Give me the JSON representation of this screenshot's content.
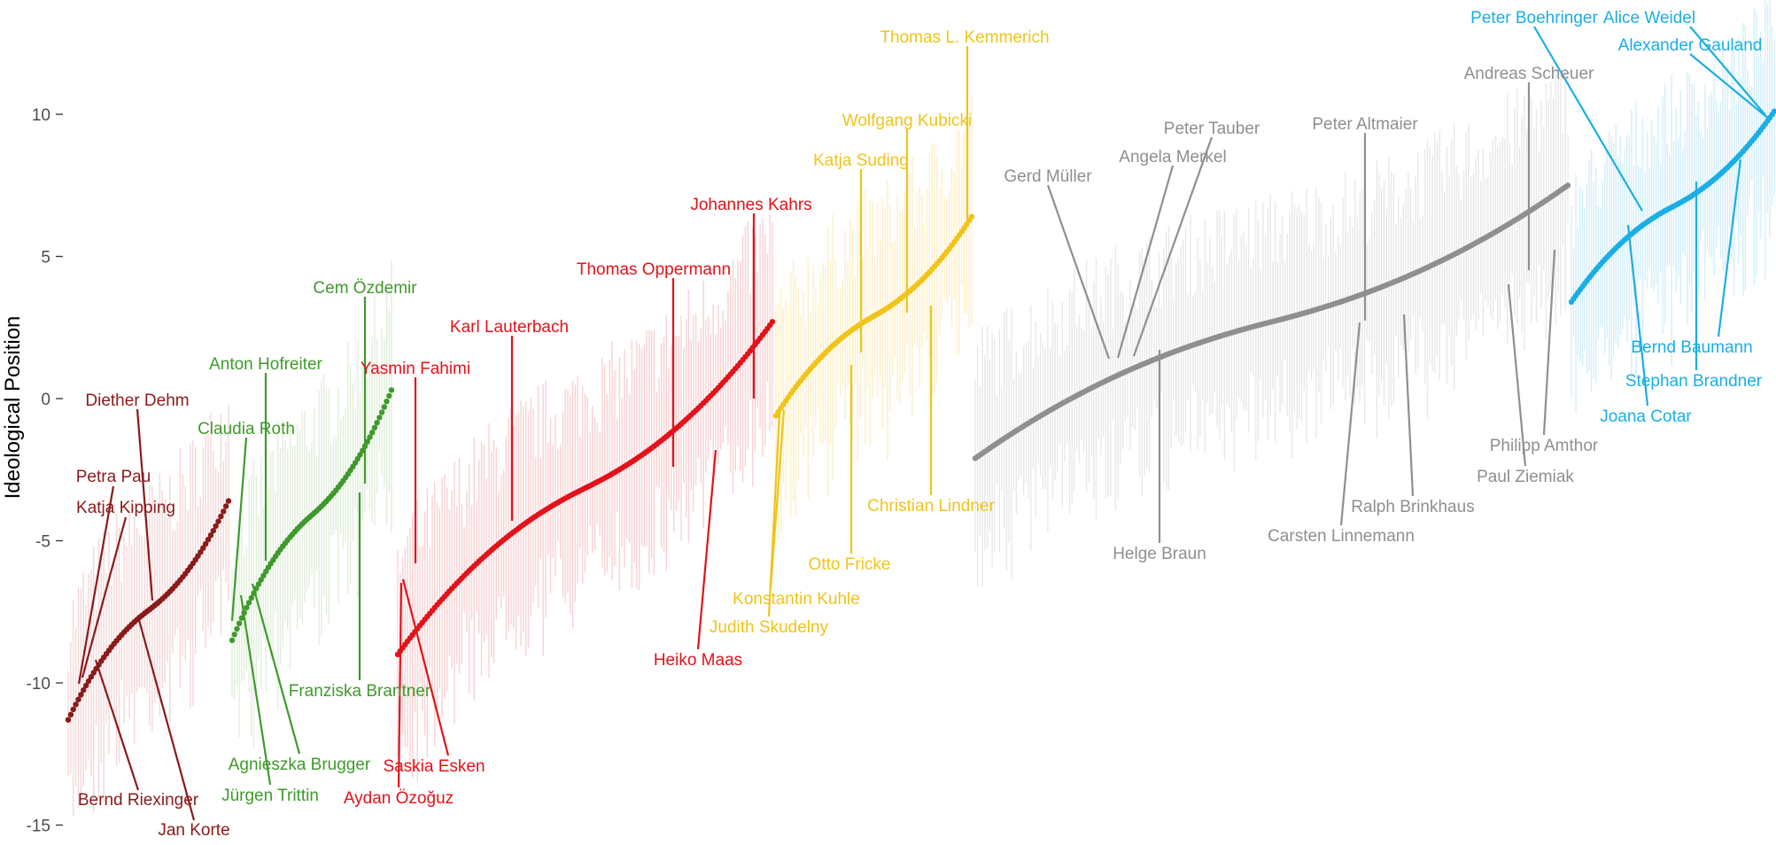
{
  "chart_data": {
    "type": "scatter",
    "title": "",
    "xlabel": "",
    "ylabel": "Ideological Position",
    "ylim": [
      -15,
      12.5
    ],
    "yticks": [
      "10",
      "5",
      "0",
      "-5",
      "-10",
      "-15"
    ],
    "grid": false,
    "legend": "none",
    "parties": [
      {
        "key": "linke",
        "color": "#8B1A1A",
        "band": "#F2D8D8",
        "count": 64,
        "start": -11.3,
        "end": -3.6
      },
      {
        "key": "gruene",
        "color": "#3E9A2B",
        "band": "#E2EEDC",
        "count": 67,
        "start": -8.5,
        "end": 0.3
      },
      {
        "key": "spd",
        "color": "#E3121A",
        "band": "#F7D2D4",
        "count": 153,
        "start": -9.0,
        "end": 2.7
      },
      {
        "key": "fdp",
        "color": "#F0C419",
        "band": "#FCF0C8",
        "count": 80,
        "start": -0.6,
        "end": 6.4
      },
      {
        "key": "union",
        "color": "#8F8F8F",
        "band": "#E8E8E8",
        "count": 246,
        "start": -2.1,
        "end": 7.5
      },
      {
        "key": "afd",
        "color": "#1AAEE5",
        "band": "#D4EEF9",
        "count": 92,
        "start": 3.4,
        "end": 10.1
      }
    ],
    "annotations": [
      {
        "name": "Diether Dehm",
        "party": "linke",
        "value": -7.1
      },
      {
        "name": "Petra Pau",
        "party": "linke",
        "value": -9.9
      },
      {
        "name": "Katja Kipping",
        "party": "linke",
        "value": -9.7
      },
      {
        "name": "Bernd Riexinger",
        "party": "linke",
        "value": -9.2
      },
      {
        "name": "Jan Korte",
        "party": "linke",
        "value": -7.8
      },
      {
        "name": "Anton Hofreiter",
        "party": "gruene",
        "value": -5.7
      },
      {
        "name": "Claudia Roth",
        "party": "gruene",
        "value": -7.7
      },
      {
        "name": "Cem Özdemir",
        "party": "gruene",
        "value": -3.0
      },
      {
        "name": "Franziska Brantner",
        "party": "gruene",
        "value": -3.3
      },
      {
        "name": "Agnieszka Brugger",
        "party": "gruene",
        "value": -6.5
      },
      {
        "name": "Jürgen Trittin",
        "party": "gruene",
        "value": -6.9
      },
      {
        "name": "Karl Lauterbach",
        "party": "spd",
        "value": -4.3
      },
      {
        "name": "Yasmin Fahimi",
        "party": "spd",
        "value": -5.8
      },
      {
        "name": "Thomas Oppermann",
        "party": "spd",
        "value": -2.4
      },
      {
        "name": "Johannes Kahrs",
        "party": "spd",
        "value": 0.0
      },
      {
        "name": "Heiko Maas",
        "party": "spd",
        "value": -1.8
      },
      {
        "name": "Saskia Esken",
        "party": "spd",
        "value": -6.4
      },
      {
        "name": "Aydan Özoğuz",
        "party": "spd",
        "value": -6.5
      },
      {
        "name": "Thomas L. Kemmerich",
        "party": "fdp",
        "value": 6.2
      },
      {
        "name": "Wolfgang Kubicki",
        "party": "fdp",
        "value": 3.0
      },
      {
        "name": "Katja Suding",
        "party": "fdp",
        "value": 1.6
      },
      {
        "name": "Christian Lindner",
        "party": "fdp",
        "value": 3.3
      },
      {
        "name": "Otto Fricke",
        "party": "fdp",
        "value": 1.2
      },
      {
        "name": "Konstantin Kuhle",
        "party": "fdp",
        "value": -0.4
      },
      {
        "name": "Judith Skudelny",
        "party": "fdp",
        "value": -0.5
      },
      {
        "name": "Gerd Müller",
        "party": "union",
        "value": 1.4
      },
      {
        "name": "Angela Merkel",
        "party": "union",
        "value": 1.4
      },
      {
        "name": "Peter Tauber",
        "party": "union",
        "value": 1.5
      },
      {
        "name": "Peter Altmaier",
        "party": "union",
        "value": 2.8
      },
      {
        "name": "Andreas Scheuer",
        "party": "union",
        "value": 4.5
      },
      {
        "name": "Helge Braun",
        "party": "union",
        "value": 1.7
      },
      {
        "name": "Ralph Brinkhaus",
        "party": "union",
        "value": 3.0
      },
      {
        "name": "Carsten Linnemann",
        "party": "union",
        "value": 2.6
      },
      {
        "name": "Philipp Amthor",
        "party": "union",
        "value": 5.2
      },
      {
        "name": "Paul Ziemiak",
        "party": "union",
        "value": 4.0
      },
      {
        "name": "Peter Boehringer",
        "party": "afd",
        "value": 6.6
      },
      {
        "name": "Alice Weidel",
        "party": "afd",
        "value": 9.9
      },
      {
        "name": "Alexander Gauland",
        "party": "afd",
        "value": 9.7
      },
      {
        "name": "Bernd Baumann",
        "party": "afd",
        "value": 7.8
      },
      {
        "name": "Stephan Brandner",
        "party": "afd",
        "value": 7.6
      },
      {
        "name": "Joana Cotar",
        "party": "afd",
        "value": 6.1
      }
    ]
  }
}
